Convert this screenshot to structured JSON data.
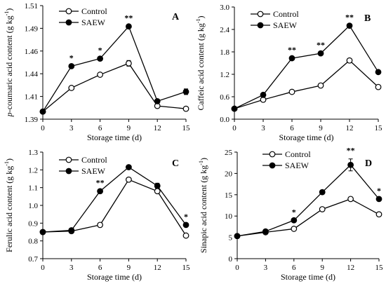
{
  "chart_data": [
    {
      "type": "line",
      "panel": "A",
      "ylabel_italic": "p",
      "ylabel_rest": "-coumaric acid content (g kg",
      "ylabel_sup": "-1",
      "ylabel_close": ")",
      "xlabel": "Storage time (d)",
      "x": [
        0,
        3,
        6,
        9,
        12,
        15
      ],
      "xticks": [
        "0",
        "3",
        "6",
        "9",
        "12",
        "15"
      ],
      "ylim": [
        1.39,
        1.51
      ],
      "yticks": [
        "1.39",
        "1.41",
        "1.44",
        "1.46",
        "1.49",
        "1.51"
      ],
      "series": [
        {
          "name": "Control",
          "values": [
            1.398,
            1.423,
            1.437,
            1.449,
            1.404,
            1.401
          ],
          "errors": [
            0,
            0,
            0,
            0.003,
            0.002,
            0
          ],
          "marker": "open"
        },
        {
          "name": "SAEW",
          "values": [
            1.398,
            1.446,
            1.454,
            1.488,
            1.409,
            1.419
          ],
          "errors": [
            0,
            0,
            0,
            0,
            0,
            0.003
          ],
          "marker": "filled"
        }
      ],
      "significance": [
        {
          "x": 3,
          "label": "*"
        },
        {
          "x": 6,
          "label": "*"
        },
        {
          "x": 9,
          "label": "**"
        }
      ]
    },
    {
      "type": "line",
      "panel": "B",
      "ylabel_italic": "",
      "ylabel_rest": "Caffeic acid content (g kg",
      "ylabel_sup": "-1",
      "ylabel_close": ")",
      "xlabel": "Storage time (d)",
      "x": [
        0,
        3,
        6,
        9,
        12,
        15
      ],
      "xticks": [
        "0",
        "3",
        "6",
        "9",
        "12",
        "15"
      ],
      "ylim": [
        0,
        3.0
      ],
      "yticks": [
        "0.0",
        "0.6",
        "1.2",
        "1.8",
        "2.4",
        "3.0"
      ],
      "series": [
        {
          "name": "Control",
          "values": [
            0.28,
            0.52,
            0.73,
            0.9,
            1.57,
            0.86
          ],
          "errors": [
            0,
            0,
            0,
            0,
            0,
            0
          ],
          "marker": "open"
        },
        {
          "name": "SAEW",
          "values": [
            0.28,
            0.65,
            1.63,
            1.76,
            2.5,
            1.26
          ],
          "errors": [
            0,
            0,
            0,
            0,
            0,
            0
          ],
          "marker": "filled"
        }
      ],
      "significance": [
        {
          "x": 6,
          "label": "**"
        },
        {
          "x": 9,
          "label": "**"
        },
        {
          "x": 12,
          "label": "**"
        }
      ]
    },
    {
      "type": "line",
      "panel": "C",
      "ylabel_italic": "",
      "ylabel_rest": "Ferulic acid content (g kg",
      "ylabel_sup": "-1",
      "ylabel_close": ")",
      "xlabel": "Storage time (d)",
      "x": [
        0,
        3,
        6,
        9,
        12,
        15
      ],
      "xticks": [
        "0",
        "3",
        "6",
        "9",
        "12",
        "15"
      ],
      "ylim": [
        0.7,
        1.3
      ],
      "yticks": [
        "0.7",
        "0.8",
        "0.9",
        "1.0",
        "1.1",
        "1.2",
        "1.3"
      ],
      "series": [
        {
          "name": "Control",
          "values": [
            0.85,
            0.855,
            0.89,
            1.145,
            1.08,
            0.83
          ],
          "errors": [
            0,
            0,
            0,
            0,
            0,
            0.01
          ],
          "marker": "open"
        },
        {
          "name": "SAEW",
          "values": [
            0.85,
            0.86,
            1.08,
            1.215,
            1.11,
            0.89
          ],
          "errors": [
            0,
            0,
            0,
            0,
            0.015,
            0
          ],
          "marker": "filled"
        }
      ],
      "significance": [
        {
          "x": 6,
          "label": "**"
        },
        {
          "x": 15,
          "label": "*"
        }
      ]
    },
    {
      "type": "line",
      "panel": "D",
      "ylabel_italic": "",
      "ylabel_rest": "Sinapic acid content (g kg",
      "ylabel_sup": "-1",
      "ylabel_close": ")",
      "xlabel": "Storage time (d)",
      "x": [
        0,
        3,
        6,
        9,
        12,
        15
      ],
      "xticks": [
        "0",
        "3",
        "6",
        "9",
        "12",
        "15"
      ],
      "ylim": [
        0,
        25
      ],
      "yticks": [
        "0",
        "5",
        "10",
        "15",
        "20",
        "25"
      ],
      "series": [
        {
          "name": "Control",
          "values": [
            5.3,
            6.2,
            7.0,
            11.6,
            14.0,
            10.4
          ],
          "errors": [
            0,
            0,
            0,
            0,
            0,
            0
          ],
          "marker": "open"
        },
        {
          "name": "SAEW",
          "values": [
            5.3,
            6.4,
            9.0,
            15.6,
            22.0,
            14.0
          ],
          "errors": [
            0,
            0,
            0,
            0,
            1.4,
            0
          ],
          "marker": "filled"
        }
      ],
      "significance": [
        {
          "x": 6,
          "label": "*"
        },
        {
          "x": 12,
          "label": "**"
        },
        {
          "x": 15,
          "label": "*"
        }
      ]
    }
  ]
}
